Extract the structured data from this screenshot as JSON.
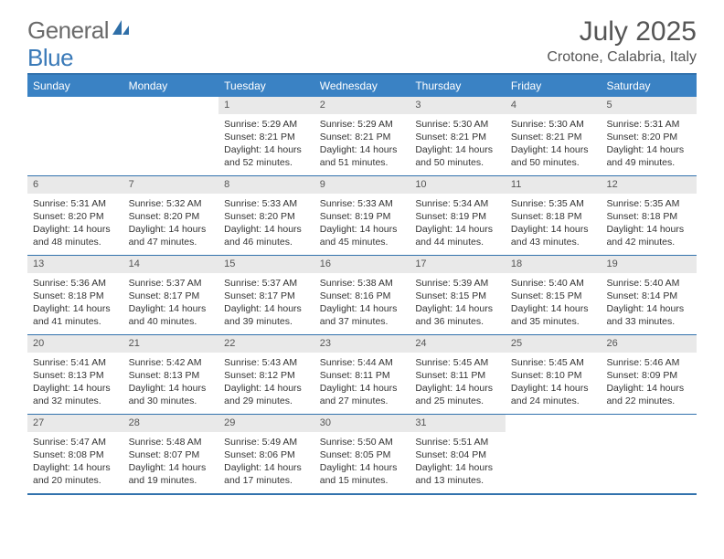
{
  "logo": {
    "general": "General",
    "blue": "Blue"
  },
  "title": "July 2025",
  "location": "Crotone, Calabria, Italy",
  "colors": {
    "header_bg": "#3a82c4",
    "border": "#3272ad",
    "daynum_bg": "#e9e9e9",
    "text": "#333333",
    "logo_gray": "#6b6b6b",
    "logo_blue": "#3a7ab8"
  },
  "day_names": [
    "Sunday",
    "Monday",
    "Tuesday",
    "Wednesday",
    "Thursday",
    "Friday",
    "Saturday"
  ],
  "weeks": [
    [
      {
        "empty": true
      },
      {
        "empty": true
      },
      {
        "num": "1",
        "sunrise": "Sunrise: 5:29 AM",
        "sunset": "Sunset: 8:21 PM",
        "day1": "Daylight: 14 hours",
        "day2": "and 52 minutes."
      },
      {
        "num": "2",
        "sunrise": "Sunrise: 5:29 AM",
        "sunset": "Sunset: 8:21 PM",
        "day1": "Daylight: 14 hours",
        "day2": "and 51 minutes."
      },
      {
        "num": "3",
        "sunrise": "Sunrise: 5:30 AM",
        "sunset": "Sunset: 8:21 PM",
        "day1": "Daylight: 14 hours",
        "day2": "and 50 minutes."
      },
      {
        "num": "4",
        "sunrise": "Sunrise: 5:30 AM",
        "sunset": "Sunset: 8:21 PM",
        "day1": "Daylight: 14 hours",
        "day2": "and 50 minutes."
      },
      {
        "num": "5",
        "sunrise": "Sunrise: 5:31 AM",
        "sunset": "Sunset: 8:20 PM",
        "day1": "Daylight: 14 hours",
        "day2": "and 49 minutes."
      }
    ],
    [
      {
        "num": "6",
        "sunrise": "Sunrise: 5:31 AM",
        "sunset": "Sunset: 8:20 PM",
        "day1": "Daylight: 14 hours",
        "day2": "and 48 minutes."
      },
      {
        "num": "7",
        "sunrise": "Sunrise: 5:32 AM",
        "sunset": "Sunset: 8:20 PM",
        "day1": "Daylight: 14 hours",
        "day2": "and 47 minutes."
      },
      {
        "num": "8",
        "sunrise": "Sunrise: 5:33 AM",
        "sunset": "Sunset: 8:20 PM",
        "day1": "Daylight: 14 hours",
        "day2": "and 46 minutes."
      },
      {
        "num": "9",
        "sunrise": "Sunrise: 5:33 AM",
        "sunset": "Sunset: 8:19 PM",
        "day1": "Daylight: 14 hours",
        "day2": "and 45 minutes."
      },
      {
        "num": "10",
        "sunrise": "Sunrise: 5:34 AM",
        "sunset": "Sunset: 8:19 PM",
        "day1": "Daylight: 14 hours",
        "day2": "and 44 minutes."
      },
      {
        "num": "11",
        "sunrise": "Sunrise: 5:35 AM",
        "sunset": "Sunset: 8:18 PM",
        "day1": "Daylight: 14 hours",
        "day2": "and 43 minutes."
      },
      {
        "num": "12",
        "sunrise": "Sunrise: 5:35 AM",
        "sunset": "Sunset: 8:18 PM",
        "day1": "Daylight: 14 hours",
        "day2": "and 42 minutes."
      }
    ],
    [
      {
        "num": "13",
        "sunrise": "Sunrise: 5:36 AM",
        "sunset": "Sunset: 8:18 PM",
        "day1": "Daylight: 14 hours",
        "day2": "and 41 minutes."
      },
      {
        "num": "14",
        "sunrise": "Sunrise: 5:37 AM",
        "sunset": "Sunset: 8:17 PM",
        "day1": "Daylight: 14 hours",
        "day2": "and 40 minutes."
      },
      {
        "num": "15",
        "sunrise": "Sunrise: 5:37 AM",
        "sunset": "Sunset: 8:17 PM",
        "day1": "Daylight: 14 hours",
        "day2": "and 39 minutes."
      },
      {
        "num": "16",
        "sunrise": "Sunrise: 5:38 AM",
        "sunset": "Sunset: 8:16 PM",
        "day1": "Daylight: 14 hours",
        "day2": "and 37 minutes."
      },
      {
        "num": "17",
        "sunrise": "Sunrise: 5:39 AM",
        "sunset": "Sunset: 8:15 PM",
        "day1": "Daylight: 14 hours",
        "day2": "and 36 minutes."
      },
      {
        "num": "18",
        "sunrise": "Sunrise: 5:40 AM",
        "sunset": "Sunset: 8:15 PM",
        "day1": "Daylight: 14 hours",
        "day2": "and 35 minutes."
      },
      {
        "num": "19",
        "sunrise": "Sunrise: 5:40 AM",
        "sunset": "Sunset: 8:14 PM",
        "day1": "Daylight: 14 hours",
        "day2": "and 33 minutes."
      }
    ],
    [
      {
        "num": "20",
        "sunrise": "Sunrise: 5:41 AM",
        "sunset": "Sunset: 8:13 PM",
        "day1": "Daylight: 14 hours",
        "day2": "and 32 minutes."
      },
      {
        "num": "21",
        "sunrise": "Sunrise: 5:42 AM",
        "sunset": "Sunset: 8:13 PM",
        "day1": "Daylight: 14 hours",
        "day2": "and 30 minutes."
      },
      {
        "num": "22",
        "sunrise": "Sunrise: 5:43 AM",
        "sunset": "Sunset: 8:12 PM",
        "day1": "Daylight: 14 hours",
        "day2": "and 29 minutes."
      },
      {
        "num": "23",
        "sunrise": "Sunrise: 5:44 AM",
        "sunset": "Sunset: 8:11 PM",
        "day1": "Daylight: 14 hours",
        "day2": "and 27 minutes."
      },
      {
        "num": "24",
        "sunrise": "Sunrise: 5:45 AM",
        "sunset": "Sunset: 8:11 PM",
        "day1": "Daylight: 14 hours",
        "day2": "and 25 minutes."
      },
      {
        "num": "25",
        "sunrise": "Sunrise: 5:45 AM",
        "sunset": "Sunset: 8:10 PM",
        "day1": "Daylight: 14 hours",
        "day2": "and 24 minutes."
      },
      {
        "num": "26",
        "sunrise": "Sunrise: 5:46 AM",
        "sunset": "Sunset: 8:09 PM",
        "day1": "Daylight: 14 hours",
        "day2": "and 22 minutes."
      }
    ],
    [
      {
        "num": "27",
        "sunrise": "Sunrise: 5:47 AM",
        "sunset": "Sunset: 8:08 PM",
        "day1": "Daylight: 14 hours",
        "day2": "and 20 minutes."
      },
      {
        "num": "28",
        "sunrise": "Sunrise: 5:48 AM",
        "sunset": "Sunset: 8:07 PM",
        "day1": "Daylight: 14 hours",
        "day2": "and 19 minutes."
      },
      {
        "num": "29",
        "sunrise": "Sunrise: 5:49 AM",
        "sunset": "Sunset: 8:06 PM",
        "day1": "Daylight: 14 hours",
        "day2": "and 17 minutes."
      },
      {
        "num": "30",
        "sunrise": "Sunrise: 5:50 AM",
        "sunset": "Sunset: 8:05 PM",
        "day1": "Daylight: 14 hours",
        "day2": "and 15 minutes."
      },
      {
        "num": "31",
        "sunrise": "Sunrise: 5:51 AM",
        "sunset": "Sunset: 8:04 PM",
        "day1": "Daylight: 14 hours",
        "day2": "and 13 minutes."
      },
      {
        "empty": true
      },
      {
        "empty": true
      }
    ]
  ]
}
